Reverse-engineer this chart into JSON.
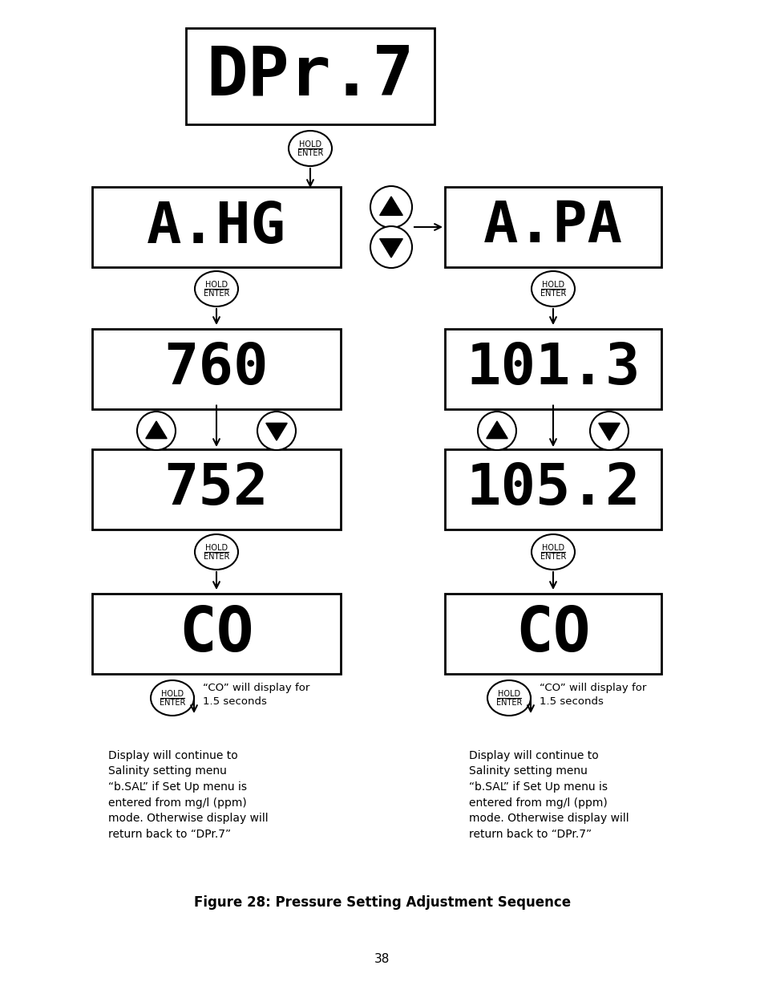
{
  "title": "Figure 28: Pressure Setting Adjustment Sequence",
  "page_num": "38",
  "background": "#ffffff",
  "caption_left": "Display will continue to\nSalinity setting menu\n“b.SAL” if Set Up menu is\nentered from mg/l (ppm)\nmode. Otherwise display will\nreturn back to “DPr.7”",
  "caption_right": "Display will continue to\nSalinity setting menu\n“b.SAL” if Set Up menu is\nentered from mg/l (ppm)\nmode. Otherwise display will\nreturn back to “DPr.7”",
  "co_note": "“CO” will display for\n1.5 seconds",
  "figW": 9.54,
  "figH": 12.44,
  "dpi": 100
}
